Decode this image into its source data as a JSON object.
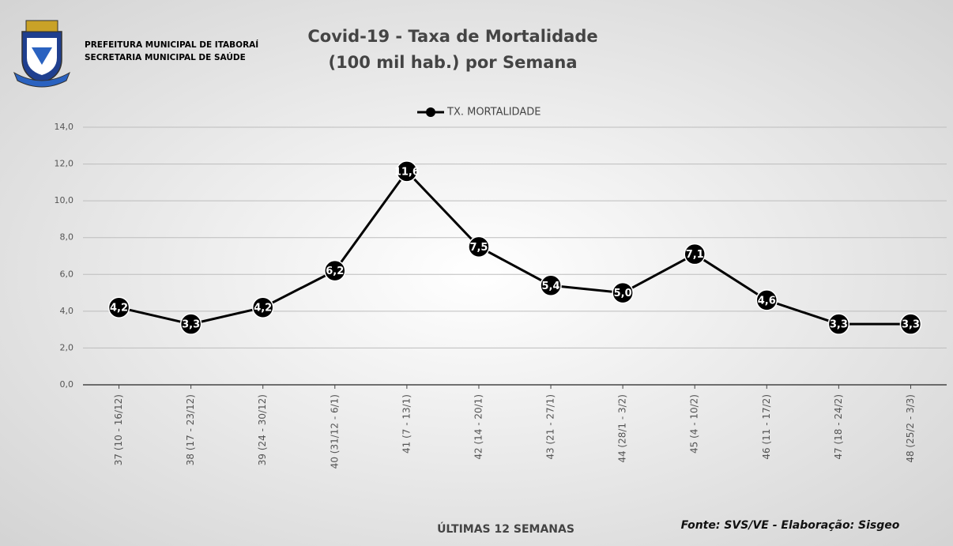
{
  "header": {
    "lines": [
      "PREFEITURA MUNICIPAL DE ITABORAÍ",
      "SECRETARIA MUNICIPAL DE SAÚDE"
    ]
  },
  "chart_data": {
    "type": "line",
    "title": [
      "Covid-19 - Taxa de Mortalidade",
      "(100 mil hab.) por Semana"
    ],
    "x_label": "ÚLTIMAS 12 SEMANAS",
    "source": "Fonte: SVS/VE - Elaboração: Sisgeo",
    "legend": "top",
    "grid": true,
    "categories": [
      "37 (10 - 16/12)",
      "38 (17 - 23/12)",
      "39 (24 - 30/12)",
      "40 (31/12 - 6/1)",
      "41 (7 - 13/1)",
      "42 (14 - 20/1)",
      "43 (21 - 27/1)",
      "44 (28/1 - 3/2)",
      "45 (4 - 10/2)",
      "46 (11 - 17/2)",
      "47 (18 - 24/2)",
      "48 (25/2 - 3/3)"
    ],
    "series": [
      {
        "name": "TX. MORTALIDADE",
        "color": "#000000",
        "values": [
          4.2,
          3.3,
          4.2,
          6.2,
          11.6,
          7.5,
          5.4,
          5.0,
          7.1,
          4.6,
          3.3,
          3.3
        ],
        "value_labels": [
          "4,2",
          "3,3",
          "4,2",
          "6,2",
          "11,6",
          "7,5",
          "5,4",
          "5,0",
          "7,1",
          "4,6",
          "3,3",
          "3,3"
        ]
      }
    ],
    "ylim": [
      0,
      14
    ],
    "yticks": [
      {
        "value": 0,
        "label": "0,0"
      },
      {
        "value": 2,
        "label": "2,0"
      },
      {
        "value": 4,
        "label": "4,0"
      },
      {
        "value": 6,
        "label": "6,0"
      },
      {
        "value": 8,
        "label": "8,0"
      },
      {
        "value": 10,
        "label": "10,0"
      },
      {
        "value": 12,
        "label": "12,0"
      },
      {
        "value": 14,
        "label": "14,0"
      }
    ]
  }
}
